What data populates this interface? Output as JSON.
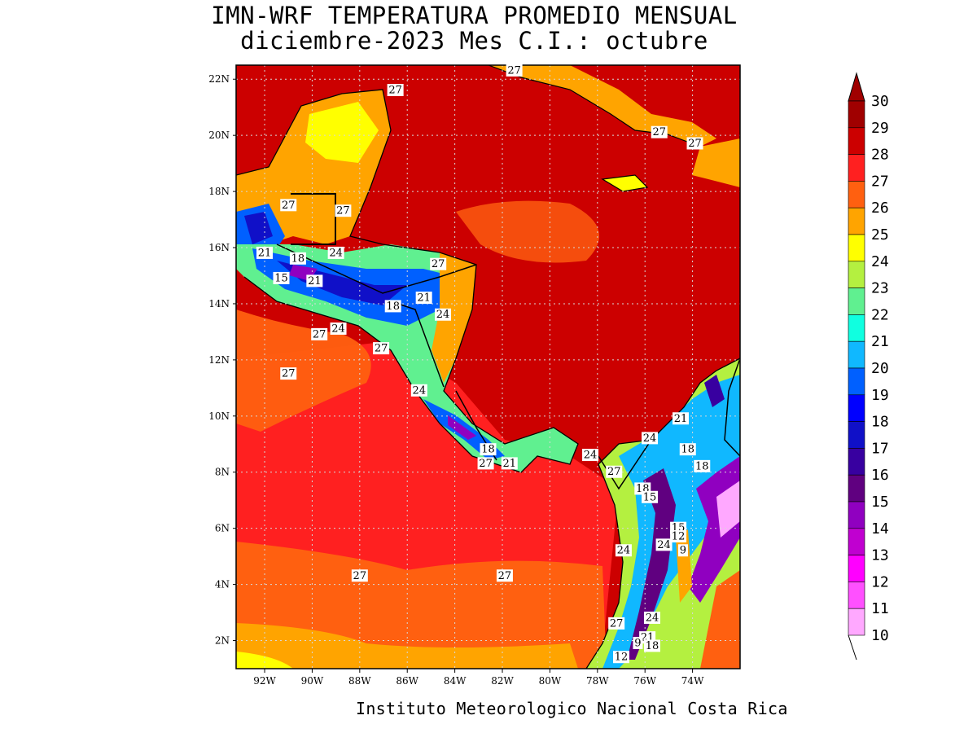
{
  "title_line1": "IMN-WRF  TEMPERATURA PROMEDIO MENSUAL",
  "title_line2": "diciembre-2023 Mes C.I.: octubre",
  "credit": "Instituto Meteorologico Nacional Costa Rica",
  "lat_labels": [
    "22N",
    "20N",
    "18N",
    "16N",
    "14N",
    "12N",
    "10N",
    "8N",
    "6N",
    "4N",
    "2N"
  ],
  "lon_labels": [
    "92W",
    "90W",
    "88W",
    "86W",
    "84W",
    "82W",
    "80W",
    "78W",
    "76W",
    "74W"
  ],
  "colorbar": {
    "levels": [
      "30",
      "29",
      "28",
      "27",
      "26",
      "25",
      "24",
      "23",
      "22",
      "21",
      "20",
      "19",
      "18",
      "17",
      "16",
      "15",
      "14",
      "13",
      "12",
      "11",
      "10"
    ],
    "colors": [
      "#a00000",
      "#cc0000",
      "#ff2020",
      "#ff6010",
      "#ffa400",
      "#ffff00",
      "#b4f040",
      "#60f090",
      "#10ffe0",
      "#10b8ff",
      "#0060ff",
      "#0000ff",
      "#1010c8",
      "#3800a0",
      "#600080",
      "#9000c0",
      "#c000d0",
      "#ff00ff",
      "#ff50ff",
      "#ffa8ff"
    ]
  },
  "contour_labels": [
    {
      "text": "27",
      "lat": 21.6,
      "lon": -86.5
    },
    {
      "text": "27",
      "lat": 22.3,
      "lon": -81.5
    },
    {
      "text": "27",
      "lat": 20.1,
      "lon": -75.4
    },
    {
      "text": "27",
      "lat": 19.7,
      "lon": -73.9
    },
    {
      "text": "27",
      "lat": 17.5,
      "lon": -91.0
    },
    {
      "text": "27",
      "lat": 17.3,
      "lon": -88.7
    },
    {
      "text": "21",
      "lat": 15.8,
      "lon": -92.0
    },
    {
      "text": "18",
      "lat": 15.6,
      "lon": -90.6
    },
    {
      "text": "24",
      "lat": 15.8,
      "lon": -89.0
    },
    {
      "text": "27",
      "lat": 15.4,
      "lon": -84.7
    },
    {
      "text": "15",
      "lat": 14.9,
      "lon": -91.3
    },
    {
      "text": "21",
      "lat": 14.8,
      "lon": -89.9
    },
    {
      "text": "21",
      "lat": 14.2,
      "lon": -85.3
    },
    {
      "text": "18",
      "lat": 13.9,
      "lon": -86.6
    },
    {
      "text": "24",
      "lat": 13.6,
      "lon": -84.5
    },
    {
      "text": "24",
      "lat": 13.1,
      "lon": -88.9
    },
    {
      "text": "27",
      "lat": 12.9,
      "lon": -89.7
    },
    {
      "text": "27",
      "lat": 12.4,
      "lon": -87.1
    },
    {
      "text": "27",
      "lat": 11.5,
      "lon": -91.0
    },
    {
      "text": "24",
      "lat": 10.9,
      "lon": -85.5
    },
    {
      "text": "21",
      "lat": 9.9,
      "lon": -74.5
    },
    {
      "text": "24",
      "lat": 9.2,
      "lon": -75.8
    },
    {
      "text": "18",
      "lat": 8.8,
      "lon": -82.6
    },
    {
      "text": "24",
      "lat": 8.6,
      "lon": -78.3
    },
    {
      "text": "18",
      "lat": 8.8,
      "lon": -74.2
    },
    {
      "text": "27",
      "lat": 8.3,
      "lon": -82.7
    },
    {
      "text": "21",
      "lat": 8.3,
      "lon": -81.7
    },
    {
      "text": "27",
      "lat": 8.0,
      "lon": -77.3
    },
    {
      "text": "18",
      "lat": 8.2,
      "lon": -73.6
    },
    {
      "text": "18",
      "lat": 7.4,
      "lon": -76.1
    },
    {
      "text": "15",
      "lat": 7.1,
      "lon": -75.8
    },
    {
      "text": "15",
      "lat": 6.0,
      "lon": -74.6
    },
    {
      "text": "12",
      "lat": 5.7,
      "lon": -74.6
    },
    {
      "text": "24",
      "lat": 5.4,
      "lon": -75.2
    },
    {
      "text": "24",
      "lat": 5.2,
      "lon": -76.9
    },
    {
      "text": "9",
      "lat": 5.2,
      "lon": -74.4
    },
    {
      "text": "27",
      "lat": 4.3,
      "lon": -88.0
    },
    {
      "text": "27",
      "lat": 4.3,
      "lon": -81.9
    },
    {
      "text": "24",
      "lat": 2.8,
      "lon": -75.7
    },
    {
      "text": "27",
      "lat": 2.6,
      "lon": -77.2
    },
    {
      "text": "21",
      "lat": 2.1,
      "lon": -75.9
    },
    {
      "text": "9",
      "lat": 1.9,
      "lon": -76.3
    },
    {
      "text": "18",
      "lat": 1.8,
      "lon": -75.7
    },
    {
      "text": "12",
      "lat": 1.4,
      "lon": -77.0
    }
  ]
}
